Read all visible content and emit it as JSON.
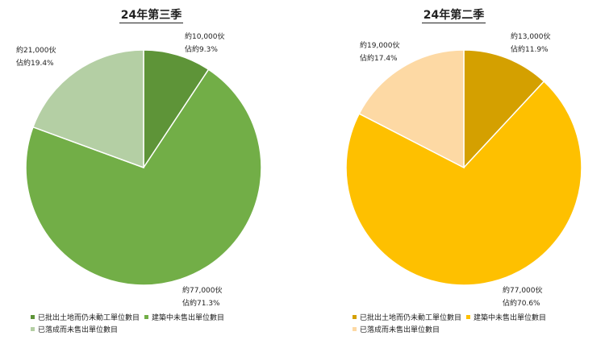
{
  "chart_data": [
    {
      "type": "pie",
      "title": "24年第三季",
      "slices": [
        {
          "label": "已批出土地而仍未動工單位數目",
          "value": 10000,
          "percent": 9.3,
          "color": "#5e9438",
          "amount_label": "約10,000伙",
          "percent_label": "佔約9.3%"
        },
        {
          "label": "建築中未售出單位數目",
          "value": 77000,
          "percent": 71.3,
          "color": "#72ae47",
          "amount_label": "約77,000伙",
          "percent_label": "佔約71.3%"
        },
        {
          "label": "已落成而未售出單位數目",
          "value": 21000,
          "percent": 19.4,
          "color": "#b4cfa4",
          "amount_label": "約21,000伙",
          "percent_label": "佔約19.4%"
        }
      ],
      "legend_placement": "bottom"
    },
    {
      "type": "pie",
      "title": "24年第二季",
      "slices": [
        {
          "label": "已批出土地而仍未動工單位數目",
          "value": 13000,
          "percent": 11.9,
          "color": "#d4a000",
          "amount_label": "約13,000伙",
          "percent_label": "佔約11.9%"
        },
        {
          "label": "建築中未售出單位數目",
          "value": 77000,
          "percent": 70.6,
          "color": "#fec000",
          "amount_label": "約77,000伙",
          "percent_label": "佔約70.6%"
        },
        {
          "label": "已落成而未售出單位數目",
          "value": 19000,
          "percent": 17.4,
          "color": "#fdd9a4",
          "amount_label": "約19,000伙",
          "percent_label": "佔約17.4%"
        }
      ],
      "legend_placement": "bottom"
    }
  ]
}
